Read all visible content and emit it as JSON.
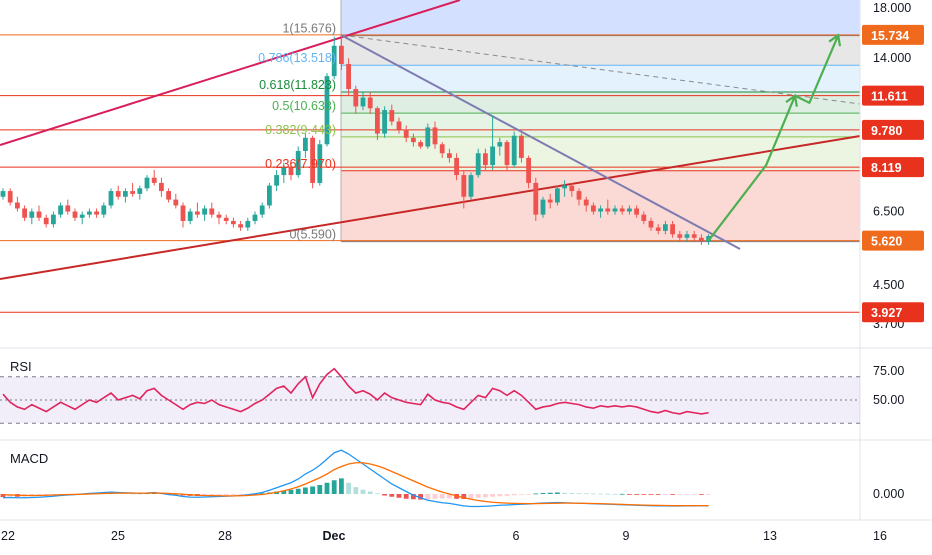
{
  "chart_data": {
    "type": "candlestick",
    "price_axis": {
      "ticks": [
        {
          "label": "18.000",
          "value": 18.0
        },
        {
          "label": "14.000",
          "value": 14.0
        },
        {
          "label": "6.500",
          "value": 6.5
        },
        {
          "label": "4.500",
          "value": 4.5
        },
        {
          "label": "3.700",
          "value": 3.7
        }
      ],
      "range": [
        3.5,
        18.6
      ]
    },
    "price_levels": [
      {
        "label": "15.734",
        "value": 15.734,
        "color": "#f06a1d"
      },
      {
        "label": "11.611",
        "value": 11.611,
        "color": "#e8321e"
      },
      {
        "label": "9.780",
        "value": 9.78,
        "color": "#e8321e"
      },
      {
        "label": "8.119",
        "value": 8.119,
        "color": "#e8321e"
      },
      {
        "label": "5.620",
        "value": 5.62,
        "color": "#f06a1d"
      },
      {
        "label": "3.927",
        "value": 3.927,
        "color": "#e8321e"
      }
    ],
    "fibonacci": [
      {
        "label": "1(15.676)",
        "ratio": 1,
        "value": 15.676,
        "color": "#787878"
      },
      {
        "label": "0.786(13.518)",
        "ratio": 0.786,
        "value": 13.518,
        "color": "#64b5f6"
      },
      {
        "label": "0.618(11.823)",
        "ratio": 0.618,
        "value": 11.823,
        "color": "#1b8a3c"
      },
      {
        "label": "0.5(10.633)",
        "ratio": 0.5,
        "value": 10.633,
        "color": "#4caf50"
      },
      {
        "label": "0.382(9.443)",
        "ratio": 0.382,
        "value": 9.443,
        "color": "#8bc34a"
      },
      {
        "label": "0.236(7.970)",
        "ratio": 0.236,
        "value": 7.97,
        "color": "#e8321e"
      },
      {
        "label": "0(5.590)",
        "ratio": 0,
        "value": 5.59,
        "color": "#787878"
      }
    ],
    "time_axis": {
      "ticks": [
        "22",
        "25",
        "28",
        "Dec",
        "6",
        "9",
        "13",
        "16"
      ]
    },
    "candles": [
      [
        7.0,
        7.3,
        6.9,
        7.2
      ],
      [
        7.2,
        7.3,
        6.7,
        6.8
      ],
      [
        6.8,
        7.0,
        6.5,
        6.6
      ],
      [
        6.6,
        6.7,
        6.2,
        6.3
      ],
      [
        6.3,
        6.6,
        6.1,
        6.5
      ],
      [
        6.5,
        6.7,
        6.2,
        6.3
      ],
      [
        6.3,
        6.4,
        6.0,
        6.1
      ],
      [
        6.1,
        6.5,
        6.0,
        6.4
      ],
      [
        6.4,
        6.8,
        6.3,
        6.7
      ],
      [
        6.7,
        6.9,
        6.4,
        6.5
      ],
      [
        6.5,
        6.6,
        6.2,
        6.3
      ],
      [
        6.3,
        6.5,
        6.1,
        6.4
      ],
      [
        6.4,
        6.6,
        6.3,
        6.5
      ],
      [
        6.5,
        6.6,
        6.3,
        6.4
      ],
      [
        6.4,
        6.8,
        6.3,
        6.7
      ],
      [
        6.7,
        7.3,
        6.6,
        7.2
      ],
      [
        7.2,
        7.4,
        6.9,
        7.0
      ],
      [
        7.0,
        7.3,
        6.8,
        7.2
      ],
      [
        7.2,
        7.5,
        7.0,
        7.1
      ],
      [
        7.1,
        7.4,
        6.9,
        7.3
      ],
      [
        7.3,
        7.8,
        7.2,
        7.7
      ],
      [
        7.7,
        8.0,
        7.4,
        7.5
      ],
      [
        7.5,
        7.7,
        7.0,
        7.2
      ],
      [
        7.2,
        7.3,
        6.8,
        6.9
      ],
      [
        6.9,
        7.1,
        6.6,
        6.7
      ],
      [
        6.7,
        6.8,
        6.0,
        6.2
      ],
      [
        6.2,
        6.6,
        6.1,
        6.5
      ],
      [
        6.5,
        6.8,
        6.3,
        6.4
      ],
      [
        6.4,
        6.7,
        6.2,
        6.6
      ],
      [
        6.6,
        6.8,
        6.3,
        6.4
      ],
      [
        6.4,
        6.5,
        6.1,
        6.3
      ],
      [
        6.3,
        6.4,
        6.1,
        6.2
      ],
      [
        6.2,
        6.3,
        6.0,
        6.1
      ],
      [
        6.1,
        6.2,
        5.9,
        6.0
      ],
      [
        6.0,
        6.3,
        5.9,
        6.2
      ],
      [
        6.2,
        6.5,
        6.1,
        6.4
      ],
      [
        6.4,
        6.8,
        6.3,
        6.7
      ],
      [
        6.7,
        7.5,
        6.6,
        7.4
      ],
      [
        7.4,
        8.0,
        7.2,
        7.8
      ],
      [
        7.8,
        8.3,
        7.5,
        8.1
      ],
      [
        8.1,
        8.4,
        7.6,
        7.8
      ],
      [
        7.8,
        9.0,
        7.7,
        8.8
      ],
      [
        8.8,
        9.6,
        8.5,
        9.4
      ],
      [
        9.4,
        9.5,
        7.3,
        7.5
      ],
      [
        7.5,
        9.3,
        7.4,
        9.1
      ],
      [
        9.1,
        13.0,
        9.0,
        12.8
      ],
      [
        12.8,
        15.6,
        12.6,
        14.9
      ],
      [
        14.9,
        15.676,
        13.2,
        13.6
      ],
      [
        13.6,
        14.0,
        11.6,
        12.0
      ],
      [
        12.0,
        12.2,
        10.6,
        11.0
      ],
      [
        11.0,
        11.8,
        10.8,
        11.5
      ],
      [
        11.5,
        11.8,
        10.6,
        10.9
      ],
      [
        10.9,
        11.0,
        9.3,
        9.6
      ],
      [
        9.6,
        11.0,
        9.4,
        10.8
      ],
      [
        10.8,
        11.1,
        10.0,
        10.2
      ],
      [
        10.2,
        10.4,
        9.6,
        9.8
      ],
      [
        9.8,
        10.0,
        9.2,
        9.4
      ],
      [
        9.4,
        9.6,
        9.0,
        9.2
      ],
      [
        9.2,
        9.3,
        8.9,
        9.0
      ],
      [
        9.0,
        10.1,
        8.9,
        9.9
      ],
      [
        9.9,
        10.2,
        8.9,
        9.1
      ],
      [
        9.1,
        9.2,
        8.5,
        8.7
      ],
      [
        8.7,
        8.9,
        8.3,
        8.5
      ],
      [
        8.5,
        8.7,
        7.6,
        7.8
      ],
      [
        7.8,
        8.0,
        6.6,
        7.0
      ],
      [
        7.0,
        7.9,
        6.9,
        7.8
      ],
      [
        7.8,
        8.9,
        7.7,
        8.7
      ],
      [
        8.7,
        8.9,
        8.0,
        8.2
      ],
      [
        8.2,
        10.5,
        8.0,
        9.0
      ],
      [
        9.0,
        9.4,
        8.6,
        9.2
      ],
      [
        9.2,
        9.3,
        8.0,
        8.2
      ],
      [
        8.2,
        9.7,
        8.1,
        9.5
      ],
      [
        9.5,
        9.6,
        8.3,
        8.5
      ],
      [
        8.5,
        8.6,
        7.3,
        7.5
      ],
      [
        7.5,
        7.7,
        6.2,
        6.4
      ],
      [
        6.4,
        7.0,
        6.3,
        6.9
      ],
      [
        6.9,
        7.1,
        6.6,
        6.8
      ],
      [
        6.8,
        7.4,
        6.7,
        7.3
      ],
      [
        7.3,
        7.6,
        7.0,
        7.4
      ],
      [
        7.4,
        7.5,
        7.0,
        7.2
      ],
      [
        7.2,
        7.3,
        6.7,
        6.9
      ],
      [
        6.9,
        7.0,
        6.5,
        6.7
      ],
      [
        6.7,
        6.8,
        6.4,
        6.5
      ],
      [
        6.5,
        6.7,
        6.3,
        6.6
      ],
      [
        6.6,
        6.9,
        6.4,
        6.5
      ],
      [
        6.5,
        6.7,
        6.4,
        6.6
      ],
      [
        6.6,
        6.7,
        6.4,
        6.5
      ],
      [
        6.5,
        6.7,
        6.4,
        6.6
      ],
      [
        6.6,
        6.7,
        6.3,
        6.4
      ],
      [
        6.4,
        6.5,
        6.1,
        6.2
      ],
      [
        6.2,
        6.3,
        5.9,
        6.0
      ],
      [
        6.0,
        6.1,
        5.8,
        5.9
      ],
      [
        5.9,
        6.2,
        5.8,
        6.1
      ],
      [
        6.1,
        6.2,
        5.7,
        5.8
      ],
      [
        5.8,
        5.9,
        5.6,
        5.7
      ],
      [
        5.7,
        5.9,
        5.6,
        5.8
      ],
      [
        5.8,
        5.9,
        5.6,
        5.7
      ],
      [
        5.7,
        5.8,
        5.5,
        5.6
      ],
      [
        5.6,
        5.8,
        5.5,
        5.75
      ]
    ],
    "forecast_path": [
      {
        "bar": 98,
        "price": 5.62
      },
      {
        "bar": 106,
        "price": 8.2
      },
      {
        "bar": 110,
        "price": 11.6
      },
      {
        "bar": 112,
        "price": 11.2
      },
      {
        "bar": 116,
        "price": 15.7
      }
    ],
    "rsi": {
      "label": "RSI",
      "ticks": [
        {
          "label": "75.00",
          "value": 75
        },
        {
          "label": "50.00",
          "value": 50
        }
      ],
      "band": [
        30,
        70
      ],
      "values": [
        55,
        48,
        44,
        42,
        46,
        43,
        40,
        44,
        48,
        45,
        42,
        46,
        50,
        48,
        52,
        56,
        50,
        52,
        54,
        51,
        58,
        60,
        54,
        50,
        46,
        42,
        46,
        48,
        47,
        50,
        46,
        44,
        42,
        40,
        43,
        47,
        50,
        55,
        60,
        62,
        56,
        64,
        70,
        52,
        64,
        72,
        77,
        70,
        62,
        56,
        58,
        55,
        50,
        56,
        52,
        50,
        48,
        47,
        46,
        55,
        50,
        48,
        47,
        44,
        42,
        48,
        54,
        52,
        60,
        58,
        54,
        58,
        54,
        48,
        42,
        44,
        45,
        47,
        48,
        47,
        46,
        44,
        43,
        45,
        44,
        45,
        44,
        45,
        44,
        42,
        40,
        39,
        41,
        39,
        38,
        40,
        39,
        38,
        39
      ],
      "color": "#e0245e"
    },
    "macd": {
      "label": "MACD",
      "ticks": [
        {
          "label": "0.000",
          "value": 0
        }
      ],
      "histogram": [
        -0.25,
        -0.2,
        -0.22,
        -0.2,
        -0.18,
        -0.16,
        -0.14,
        -0.1,
        -0.06,
        -0.04,
        -0.02,
        0.02,
        0.04,
        0.06,
        0.08,
        0.1,
        0.08,
        0.06,
        0.05,
        0.04,
        0.06,
        0.08,
        0.05,
        -0.02,
        -0.06,
        -0.12,
        -0.15,
        -0.16,
        -0.14,
        -0.12,
        -0.1,
        -0.09,
        -0.08,
        -0.06,
        -0.03,
        0.02,
        0.06,
        0.12,
        0.2,
        0.28,
        0.34,
        0.42,
        0.52,
        0.6,
        0.72,
        0.9,
        1.1,
        1.25,
        0.9,
        0.55,
        0.35,
        0.2,
        0.05,
        -0.12,
        -0.22,
        -0.3,
        -0.38,
        -0.42,
        -0.45,
        -0.42,
        -0.38,
        -0.36,
        -0.35,
        -0.38,
        -0.4,
        -0.36,
        -0.3,
        -0.28,
        -0.22,
        -0.18,
        -0.15,
        -0.1,
        -0.05,
        -0.02,
        0.04,
        0.08,
        0.1,
        0.12,
        0.1,
        0.08,
        0.06,
        0.05,
        0.04,
        0.03,
        0.02,
        0.01,
        0.01,
        -0.01,
        -0.02,
        -0.03,
        -0.04,
        -0.05,
        -0.04,
        -0.05,
        -0.04,
        -0.03,
        -0.02,
        -0.02,
        -0.01
      ],
      "macd_line": [
        -0.3,
        -0.28,
        -0.3,
        -0.3,
        -0.28,
        -0.26,
        -0.22,
        -0.18,
        -0.12,
        -0.08,
        -0.05,
        0.0,
        0.05,
        0.08,
        0.12,
        0.15,
        0.12,
        0.1,
        0.08,
        0.06,
        0.08,
        0.12,
        0.05,
        -0.05,
        -0.1,
        -0.2,
        -0.25,
        -0.26,
        -0.24,
        -0.22,
        -0.2,
        -0.18,
        -0.16,
        -0.12,
        -0.06,
        0.02,
        0.12,
        0.3,
        0.5,
        0.7,
        0.9,
        1.2,
        1.6,
        1.9,
        2.3,
        2.8,
        3.3,
        3.5,
        3.2,
        2.8,
        2.4,
        2.0,
        1.6,
        1.2,
        0.8,
        0.5,
        0.2,
        -0.1,
        -0.3,
        -0.5,
        -0.6,
        -0.7,
        -0.75,
        -0.85,
        -0.95,
        -1.0,
        -1.0,
        -0.98,
        -0.95,
        -0.9,
        -0.88,
        -0.85,
        -0.82,
        -0.8,
        -0.75,
        -0.72,
        -0.7,
        -0.68,
        -0.7,
        -0.72,
        -0.74,
        -0.76,
        -0.78,
        -0.8,
        -0.82,
        -0.84,
        -0.86,
        -0.88,
        -0.9,
        -0.92,
        -0.94,
        -0.95,
        -0.95,
        -0.96,
        -0.96,
        -0.95,
        -0.95,
        -0.94,
        -0.94
      ],
      "signal_line": [
        -0.05,
        -0.08,
        -0.1,
        -0.12,
        -0.12,
        -0.12,
        -0.1,
        -0.08,
        -0.06,
        -0.04,
        -0.03,
        -0.02,
        0.0,
        0.02,
        0.04,
        0.06,
        0.07,
        0.07,
        0.07,
        0.07,
        0.07,
        0.08,
        0.07,
        0.05,
        0.02,
        -0.02,
        -0.06,
        -0.1,
        -0.12,
        -0.13,
        -0.14,
        -0.15,
        -0.15,
        -0.14,
        -0.12,
        -0.08,
        -0.04,
        0.04,
        0.14,
        0.26,
        0.4,
        0.58,
        0.8,
        1.05,
        1.3,
        1.6,
        1.95,
        2.2,
        2.4,
        2.5,
        2.5,
        2.4,
        2.25,
        2.05,
        1.8,
        1.55,
        1.3,
        1.05,
        0.8,
        0.55,
        0.35,
        0.15,
        0.0,
        -0.15,
        -0.3,
        -0.42,
        -0.52,
        -0.6,
        -0.66,
        -0.7,
        -0.73,
        -0.75,
        -0.76,
        -0.77,
        -0.77,
        -0.76,
        -0.75,
        -0.74,
        -0.73,
        -0.73,
        -0.74,
        -0.75,
        -0.76,
        -0.77,
        -0.79,
        -0.81,
        -0.83,
        -0.85,
        -0.87,
        -0.89,
        -0.9,
        -0.91,
        -0.92,
        -0.93,
        -0.93,
        -0.93,
        -0.93,
        -0.93,
        -0.93
      ],
      "macd_color": "#2196f3",
      "signal_color": "#ff6d00"
    },
    "colors": {
      "up": "#26a69a",
      "down": "#ef5350",
      "trendline": "#d81e5b",
      "downtrend": "#7e7bb0",
      "forecast": "#4caf50"
    }
  }
}
